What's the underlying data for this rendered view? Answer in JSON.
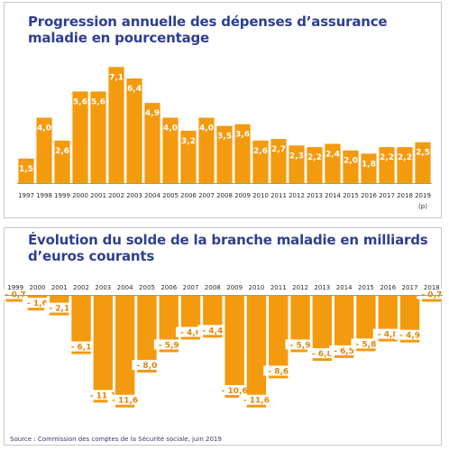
{
  "chart_data": [
    {
      "type": "bar",
      "title": "Progression annuelle des dépenses d’assurance maladie en pourcentage",
      "categories": [
        "1997",
        "1998",
        "1999",
        "2000",
        "2001",
        "2002",
        "2003",
        "2004",
        "2005",
        "2006",
        "2007",
        "2008",
        "2009",
        "2010",
        "2011",
        "2012",
        "2013",
        "2014",
        "2015",
        "2016",
        "2017",
        "2018",
        "2019"
      ],
      "category_note": "(p)",
      "values": [
        1.5,
        4.0,
        2.6,
        5.6,
        5.6,
        7.1,
        6.4,
        4.9,
        4.0,
        3.2,
        4.0,
        3.5,
        3.6,
        2.6,
        2.7,
        2.3,
        2.2,
        2.4,
        2.0,
        1.8,
        2.2,
        2.2,
        2.5
      ],
      "value_labels": [
        "1,5",
        "4,0",
        "2,6",
        "5,6",
        "5,6",
        "7,1",
        "6,4",
        "4,9",
        "4,0",
        "3,2",
        "4,0",
        "3,5",
        "3,6",
        "2,6",
        "2,7",
        "2,3",
        "2,2",
        "2,4",
        "2,0",
        "1,8",
        "2,2",
        "2,2",
        "2,5"
      ],
      "ylim": [
        0,
        7.5
      ],
      "color": "#f39a0f"
    },
    {
      "type": "bar",
      "title": "Évolution du solde de la branche maladie en milliards d’euros courants",
      "categories": [
        "1999",
        "2000",
        "2001",
        "2002",
        "2003",
        "2004",
        "2005",
        "2006",
        "2007",
        "2008",
        "2009",
        "2010",
        "2011",
        "2012",
        "2013",
        "2014",
        "2015",
        "2016",
        "2017",
        "2018"
      ],
      "values": [
        -0.7,
        -1.6,
        -2.1,
        -6.1,
        -11.1,
        -11.6,
        -8.0,
        -5.9,
        -4.6,
        -4.4,
        -10.6,
        -11.6,
        -8.6,
        -5.9,
        -6.8,
        -6.5,
        -5.8,
        -4.8,
        -4.9,
        -0.7
      ],
      "value_labels": [
        "- 0,7",
        "- 1,6",
        "- 2,1",
        "- 6,1",
        "- 11,1",
        "- 11,6",
        "- 8,0",
        "- 5,9",
        "- 4,6",
        "- 4,4",
        "- 10,6",
        "- 11,6",
        "- 8,6",
        "- 5,9",
        "- 6,8",
        "- 6,5",
        "- 5,8",
        "- 4,8",
        "- 4,9",
        "- 0,7"
      ],
      "ylim": [
        -12,
        0
      ],
      "color": "#f39a0f"
    }
  ],
  "source": "Source : Commission des comptes de la Sécurité sociale, juin 2019"
}
